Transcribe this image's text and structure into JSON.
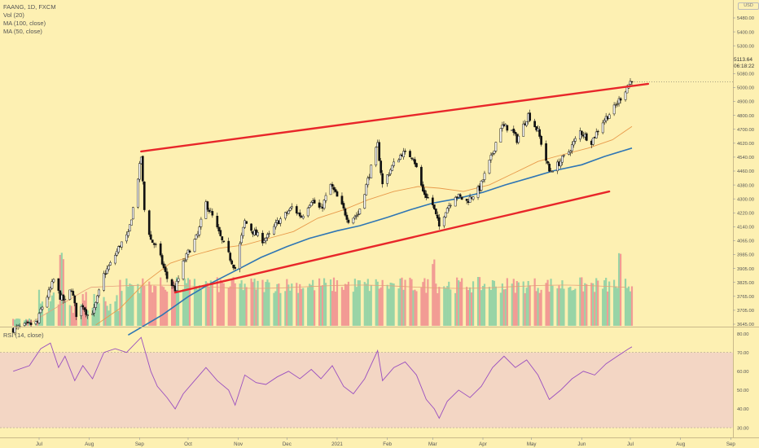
{
  "legend": {
    "title": "FAANG, 1D, FXCM",
    "vol": "Vol (20)",
    "ma100": "MA (100, close)",
    "ma50": "MA (50, close)"
  },
  "rsi_legend": "RSI (14, close)",
  "currency": "USD",
  "price_box": {
    "price": "5113.64",
    "countdown": "06:18:22"
  },
  "colors": {
    "background": "#fdf0b2",
    "candle": "#111111",
    "trendline": "#e8262a",
    "ma100": "#2f76b4",
    "ma50": "#e89a4b",
    "volume_up": "#98d4a6",
    "volume_down": "#f29b94",
    "rsi_line": "#9a4fbf",
    "rsi_band": "#f3d6c4"
  },
  "chart_data": [
    {
      "type": "candlestick",
      "title": "FAANG, 1D, FXCM",
      "x_tick_labels": [
        "Jul",
        "Aug",
        "Sep",
        "Oct",
        "Nov",
        "Dec",
        "2021",
        "Feb",
        "Mar",
        "Apr",
        "May",
        "Jun",
        "Jul",
        "Aug",
        "Sep"
      ],
      "y_tick_labels": [
        "5480.00",
        "5400.00",
        "5300.00",
        "5200.00",
        "5080.00",
        "5000.00",
        "4900.00",
        "4800.00",
        "4700.00",
        "4620.00",
        "4540.00",
        "4460.00",
        "4380.00",
        "4300.00",
        "4220.00",
        "4140.00",
        "4065.00",
        "3985.00",
        "3905.00",
        "3825.00",
        "3765.00",
        "3705.00",
        "3645.00"
      ],
      "price_anchor_points": [
        [
          "2020-06-15",
          3615
        ],
        [
          "2020-06-30",
          3655
        ],
        [
          "2020-07-02",
          3730
        ],
        [
          "2020-07-08",
          3855
        ],
        [
          "2020-07-10",
          3910
        ],
        [
          "2020-07-14",
          3810
        ],
        [
          "2020-07-17",
          3780
        ],
        [
          "2020-07-21",
          3860
        ],
        [
          "2020-07-24",
          3705
        ],
        [
          "2020-07-28",
          3760
        ],
        [
          "2020-07-31",
          3700
        ],
        [
          "2020-08-04",
          3730
        ],
        [
          "2020-08-10",
          3940
        ],
        [
          "2020-08-15",
          4020
        ],
        [
          "2020-08-20",
          4120
        ],
        [
          "2020-08-25",
          4180
        ],
        [
          "2020-08-28",
          4340
        ],
        [
          "2020-09-02",
          4650
        ],
        [
          "2020-09-04",
          4330
        ],
        [
          "2020-09-08",
          4150
        ],
        [
          "2020-09-12",
          4100
        ],
        [
          "2020-09-18",
          3920
        ],
        [
          "2020-09-23",
          3855
        ],
        [
          "2020-09-28",
          4010
        ],
        [
          "2020-10-02",
          4095
        ],
        [
          "2020-10-07",
          4180
        ],
        [
          "2020-10-12",
          4370
        ],
        [
          "2020-10-16",
          4290
        ],
        [
          "2020-10-22",
          4140
        ],
        [
          "2020-10-30",
          3980
        ],
        [
          "2020-11-05",
          4260
        ],
        [
          "2020-11-10",
          4200
        ],
        [
          "2020-11-16",
          4150
        ],
        [
          "2020-11-20",
          4175
        ],
        [
          "2020-11-25",
          4255
        ],
        [
          "2020-11-30",
          4300
        ],
        [
          "2020-12-04",
          4345
        ],
        [
          "2020-12-10",
          4290
        ],
        [
          "2020-12-16",
          4390
        ],
        [
          "2020-12-22",
          4330
        ],
        [
          "2020-12-28",
          4480
        ],
        [
          "2021-01-04",
          4350
        ],
        [
          "2021-01-08",
          4270
        ],
        [
          "2021-01-14",
          4305
        ],
        [
          "2021-01-20",
          4510
        ],
        [
          "2021-01-26",
          4720
        ],
        [
          "2021-01-29",
          4480
        ],
        [
          "2021-02-04",
          4590
        ],
        [
          "2021-02-10",
          4670
        ],
        [
          "2021-02-17",
          4650
        ],
        [
          "2021-02-23",
          4440
        ],
        [
          "2021-03-01",
          4360
        ],
        [
          "2021-03-05",
          4230
        ],
        [
          "2021-03-09",
          4330
        ],
        [
          "2021-03-15",
          4420
        ],
        [
          "2021-03-22",
          4380
        ],
        [
          "2021-03-30",
          4460
        ],
        [
          "2021-04-06",
          4640
        ],
        [
          "2021-04-12",
          4830
        ],
        [
          "2021-04-18",
          4820
        ],
        [
          "2021-04-22",
          4750
        ],
        [
          "2021-04-29",
          4900
        ],
        [
          "2021-05-05",
          4800
        ],
        [
          "2021-05-12",
          4560
        ],
        [
          "2021-05-17",
          4600
        ],
        [
          "2021-05-24",
          4680
        ],
        [
          "2021-05-31",
          4800
        ],
        [
          "2021-06-07",
          4740
        ],
        [
          "2021-06-14",
          4860
        ],
        [
          "2021-06-21",
          4940
        ],
        [
          "2021-06-28",
          5050
        ],
        [
          "2021-07-02",
          5113.64
        ]
      ]
    },
    {
      "type": "line",
      "name": "MA (100, close)",
      "points": [
        [
          "2020-08-25",
          3580
        ],
        [
          "2020-09-15",
          3700
        ],
        [
          "2020-10-01",
          3810
        ],
        [
          "2020-10-15",
          3890
        ],
        [
          "2020-11-01",
          3975
        ],
        [
          "2020-11-15",
          4045
        ],
        [
          "2020-12-01",
          4110
        ],
        [
          "2020-12-15",
          4160
        ],
        [
          "2021-01-01",
          4205
        ],
        [
          "2021-01-15",
          4235
        ],
        [
          "2021-02-01",
          4285
        ],
        [
          "2021-02-15",
          4330
        ],
        [
          "2021-03-01",
          4370
        ],
        [
          "2021-03-15",
          4395
        ],
        [
          "2021-04-01",
          4435
        ],
        [
          "2021-04-15",
          4480
        ],
        [
          "2021-05-01",
          4525
        ],
        [
          "2021-05-15",
          4565
        ],
        [
          "2021-06-01",
          4600
        ],
        [
          "2021-06-15",
          4650
        ],
        [
          "2021-07-02",
          4700
        ]
      ]
    },
    {
      "type": "line",
      "name": "MA (50, close)",
      "points": [
        [
          "2020-08-05",
          3640
        ],
        [
          "2020-08-20",
          3740
        ],
        [
          "2020-09-05",
          3900
        ],
        [
          "2020-09-20",
          4010
        ],
        [
          "2020-10-05",
          4060
        ],
        [
          "2020-10-20",
          4100
        ],
        [
          "2020-11-05",
          4120
        ],
        [
          "2020-11-20",
          4160
        ],
        [
          "2020-12-05",
          4200
        ],
        [
          "2020-12-20",
          4280
        ],
        [
          "2021-01-05",
          4330
        ],
        [
          "2021-01-20",
          4390
        ],
        [
          "2021-02-05",
          4440
        ],
        [
          "2021-02-20",
          4470
        ],
        [
          "2021-03-05",
          4460
        ],
        [
          "2021-03-20",
          4440
        ],
        [
          "2021-04-05",
          4480
        ],
        [
          "2021-04-20",
          4550
        ],
        [
          "2021-05-05",
          4620
        ],
        [
          "2021-05-20",
          4660
        ],
        [
          "2021-06-05",
          4700
        ],
        [
          "2021-06-20",
          4750
        ],
        [
          "2021-07-02",
          4830
        ]
      ]
    },
    {
      "type": "line",
      "name": "trendlines",
      "lines": [
        {
          "from": [
            "2020-09-02",
            4680
          ],
          "to": [
            "2021-07-12",
            5085
          ]
        },
        {
          "from": [
            "2020-09-23",
            3835
          ],
          "to": [
            "2021-06-18",
            4440
          ]
        }
      ]
    },
    {
      "type": "bar",
      "name": "Vol (20)",
      "note_values": "relative bar heights follow the daily candle sequence",
      "spike_dates": [
        "2020-07-15",
        "2021-03-01",
        "2021-06-25"
      ]
    },
    {
      "type": "line",
      "name": "RSI (14, close)",
      "y_tick_labels": [
        "80.00",
        "70.00",
        "60.00",
        "50.00",
        "40.00",
        "30.00"
      ],
      "ylim": [
        27,
        82
      ],
      "band": [
        30,
        70
      ],
      "points": [
        [
          "2020-06-15",
          60
        ],
        [
          "2020-06-25",
          63
        ],
        [
          "2020-07-02",
          72
        ],
        [
          "2020-07-08",
          75
        ],
        [
          "2020-07-13",
          62
        ],
        [
          "2020-07-17",
          68
        ],
        [
          "2020-07-23",
          55
        ],
        [
          "2020-07-28",
          63
        ],
        [
          "2020-08-03",
          56
        ],
        [
          "2020-08-10",
          70
        ],
        [
          "2020-08-17",
          72
        ],
        [
          "2020-08-24",
          70
        ],
        [
          "2020-09-02",
          78
        ],
        [
          "2020-09-08",
          60
        ],
        [
          "2020-09-12",
          52
        ],
        [
          "2020-09-18",
          46
        ],
        [
          "2020-09-23",
          40
        ],
        [
          "2020-09-28",
          48
        ],
        [
          "2020-10-05",
          55
        ],
        [
          "2020-10-12",
          62
        ],
        [
          "2020-10-19",
          55
        ],
        [
          "2020-10-26",
          50
        ],
        [
          "2020-10-30",
          42
        ],
        [
          "2020-11-05",
          58
        ],
        [
          "2020-11-12",
          54
        ],
        [
          "2020-11-18",
          53
        ],
        [
          "2020-11-25",
          57
        ],
        [
          "2020-12-02",
          60
        ],
        [
          "2020-12-09",
          56
        ],
        [
          "2020-12-16",
          61
        ],
        [
          "2020-12-22",
          56
        ],
        [
          "2020-12-29",
          63
        ],
        [
          "2021-01-05",
          52
        ],
        [
          "2021-01-11",
          48
        ],
        [
          "2021-01-18",
          56
        ],
        [
          "2021-01-26",
          71
        ],
        [
          "2021-01-29",
          55
        ],
        [
          "2021-02-05",
          62
        ],
        [
          "2021-02-12",
          65
        ],
        [
          "2021-02-19",
          58
        ],
        [
          "2021-02-25",
          45
        ],
        [
          "2021-03-02",
          40
        ],
        [
          "2021-03-05",
          35
        ],
        [
          "2021-03-10",
          44
        ],
        [
          "2021-03-17",
          50
        ],
        [
          "2021-03-24",
          46
        ],
        [
          "2021-03-31",
          52
        ],
        [
          "2021-04-07",
          62
        ],
        [
          "2021-04-14",
          68
        ],
        [
          "2021-04-21",
          62
        ],
        [
          "2021-04-28",
          66
        ],
        [
          "2021-05-05",
          58
        ],
        [
          "2021-05-12",
          45
        ],
        [
          "2021-05-19",
          50
        ],
        [
          "2021-05-26",
          56
        ],
        [
          "2021-06-02",
          60
        ],
        [
          "2021-06-09",
          58
        ],
        [
          "2021-06-16",
          64
        ],
        [
          "2021-06-23",
          68
        ],
        [
          "2021-06-30",
          72
        ],
        [
          "2021-07-02",
          73
        ]
      ]
    }
  ]
}
